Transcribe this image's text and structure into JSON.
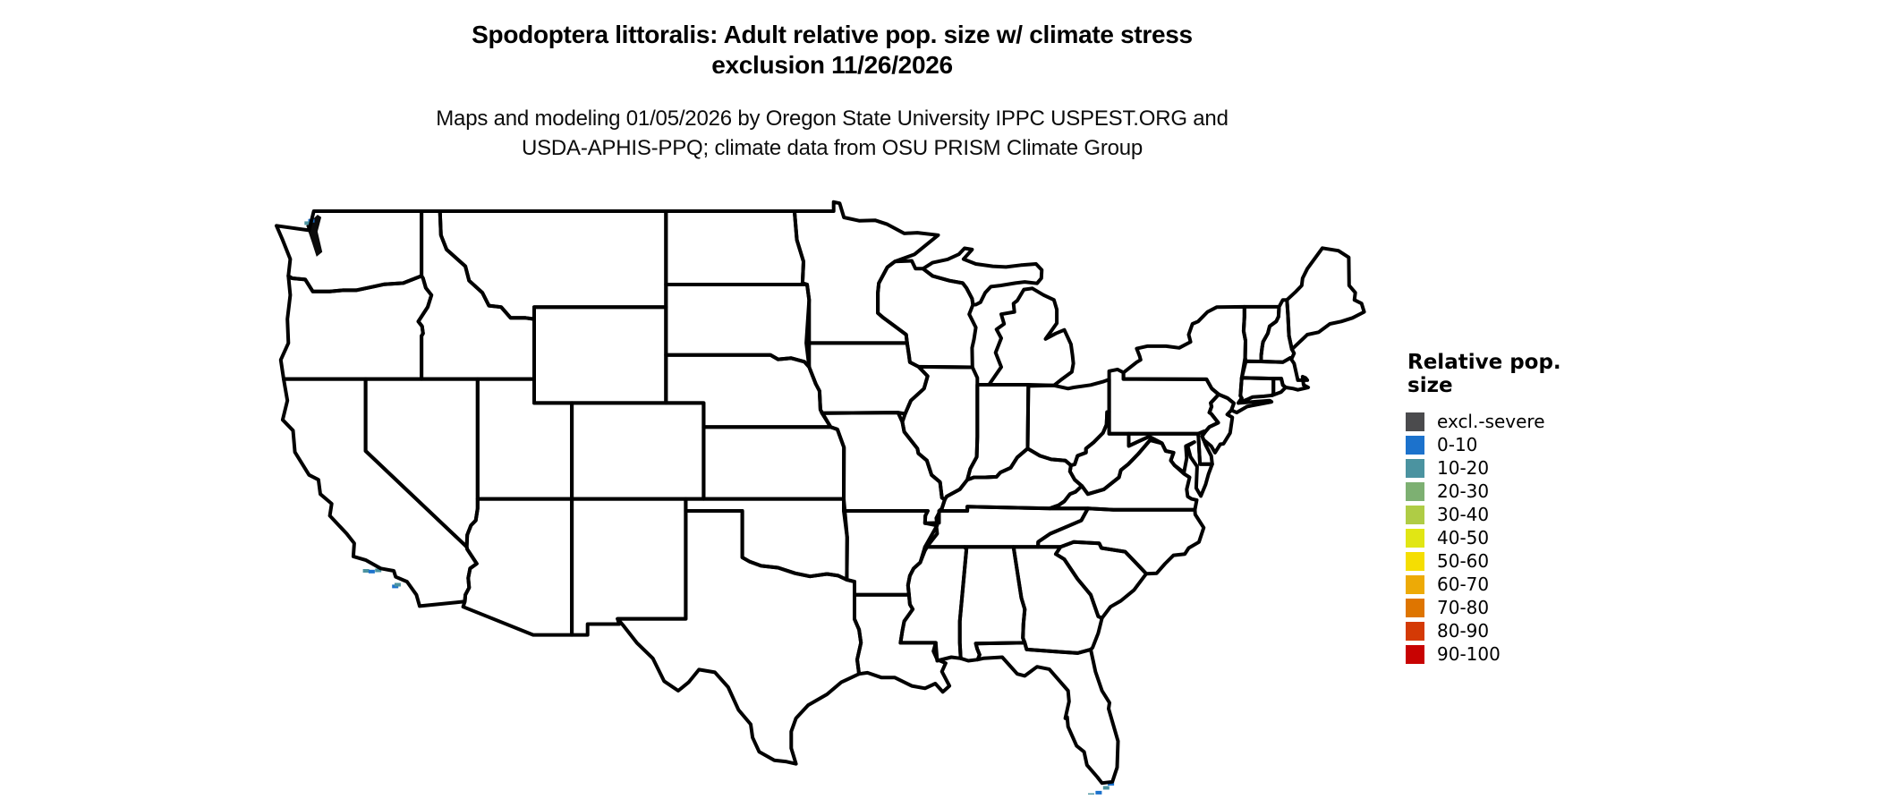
{
  "title": {
    "line1": "Spodoptera littoralis: Adult relative pop. size w/ climate stress",
    "line2": "exclusion 11/26/2026"
  },
  "subtitle": {
    "line1": "Maps and modeling 01/05/2026 by Oregon State University IPPC USPEST.ORG and",
    "line2": "USDA-APHIS-PPQ; climate data from OSU PRISM Climate Group"
  },
  "legend": {
    "title": "Relative pop. size",
    "items": [
      {
        "label": "excl.-severe",
        "color": "#4B4B4D"
      },
      {
        "label": "0-10",
        "color": "#1C72CC"
      },
      {
        "label": "10-20",
        "color": "#4B93A0"
      },
      {
        "label": "20-30",
        "color": "#7DB072"
      },
      {
        "label": "30-40",
        "color": "#AFCC45"
      },
      {
        "label": "40-50",
        "color": "#E1E614"
      },
      {
        "label": "50-60",
        "color": "#F5DE02"
      },
      {
        "label": "60-70",
        "color": "#EDAA06"
      },
      {
        "label": "70-80",
        "color": "#DE7500"
      },
      {
        "label": "80-90",
        "color": "#D43A05"
      },
      {
        "label": "90-100",
        "color": "#C80302"
      }
    ]
  },
  "map": {
    "background": "#FFFFFF",
    "state_border_color": "#000000",
    "base_fill": "#1C72CC",
    "excluded_fill": "#4B4B4D",
    "speckle_teal": "#4B93A0",
    "speckle_green": "#7DB072",
    "speckle_yellowgreen": "#AFCC45"
  }
}
